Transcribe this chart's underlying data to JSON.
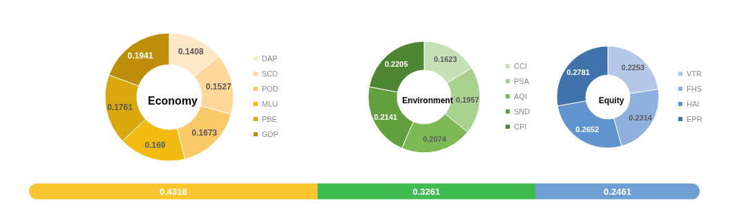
{
  "chart_data": [
    {
      "type": "donut",
      "title": "Economy",
      "categories": [
        "DAP",
        "SCD",
        "POD",
        "MLU",
        "PBE",
        "GDP"
      ],
      "values": [
        0.1408,
        0.1527,
        0.1673,
        0.169,
        0.1761,
        0.1941
      ],
      "colors": [
        "#fde7c4",
        "#fdd898",
        "#fbca68",
        "#f2bb12",
        "#d9a80e",
        "#be8e0a"
      ],
      "data_labels": true,
      "legend": "right"
    },
    {
      "type": "donut",
      "title": "Environment",
      "categories": [
        "CCI",
        "PSA",
        "AQI",
        "SND",
        "CPI"
      ],
      "values": [
        0.1623,
        0.1957,
        0.2074,
        0.2141,
        0.2205
      ],
      "colors": [
        "#c5e0b4",
        "#a9d18e",
        "#7dba55",
        "#62a03d",
        "#4e8631"
      ],
      "data_labels": true,
      "legend": "right"
    },
    {
      "type": "donut",
      "title": "Equity",
      "categories": [
        "VTR",
        "FHS",
        "HAI",
        "EPR"
      ],
      "values": [
        0.2253,
        0.2314,
        0.2652,
        0.2781
      ],
      "colors": [
        "#b4c7e7",
        "#8fb0dd",
        "#5f94cf",
        "#3f72aa"
      ],
      "data_labels": true,
      "legend": "right"
    },
    {
      "type": "bar",
      "orientation": "horizontal",
      "stacked": true,
      "categories": [
        null
      ],
      "tick_labels": false,
      "data_labels": true,
      "series": [
        {
          "color": "#f9c630",
          "values": [
            0.4318
          ]
        },
        {
          "color": "#3fbb4f",
          "values": [
            0.3261
          ]
        },
        {
          "color": "#6f9fd2",
          "values": [
            0.2461
          ]
        }
      ]
    }
  ]
}
